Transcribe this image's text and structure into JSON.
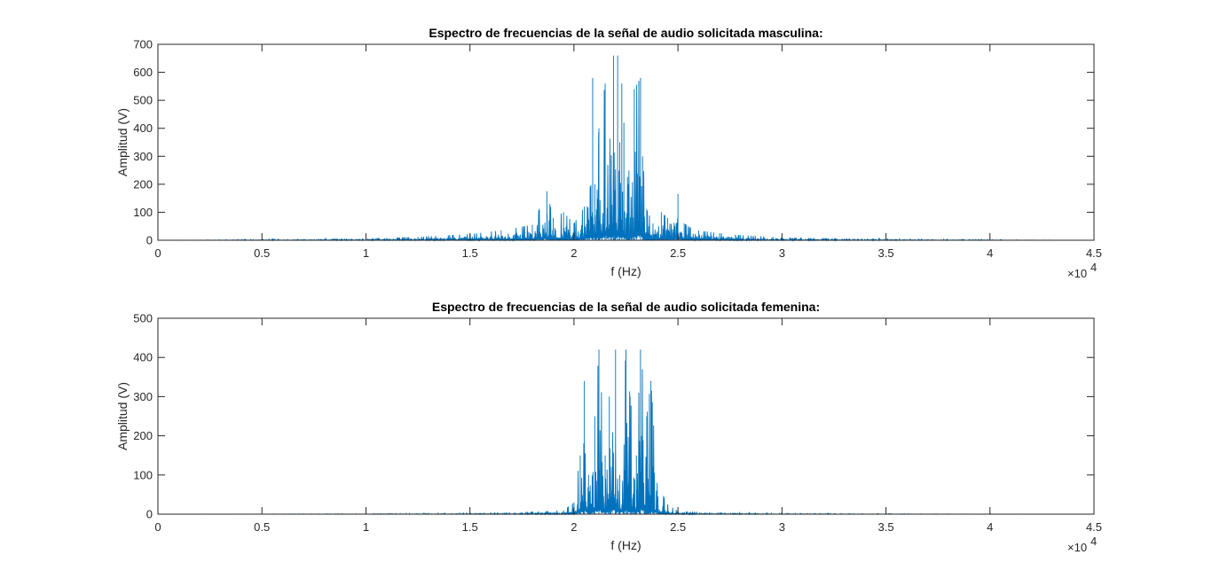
{
  "chart_data": [
    {
      "type": "line",
      "title": "Espectro de frecuencias de la señal de audio solicitada masculina:",
      "xlabel": "f (Hz)",
      "ylabel": "Amplitud (V)",
      "xlim": [
        0,
        45000
      ],
      "ylim": [
        0,
        700
      ],
      "x_tick_labels": [
        "0",
        "0.5",
        "1",
        "1.5",
        "2",
        "2.5",
        "3",
        "3.5",
        "4",
        "4.5"
      ],
      "y_tick_labels": [
        "0",
        "100",
        "200",
        "300",
        "400",
        "500",
        "600",
        "700"
      ],
      "x_exponent_label": "×10",
      "x_exponent_power": "4",
      "grid": false,
      "line_color": "#0072BD",
      "series": [
        {
          "x": [
            0,
            5000,
            10000,
            12500,
            15000,
            16500,
            18000,
            18700,
            19000,
            19500,
            20000,
            20500,
            20900,
            21000,
            21200,
            21500,
            21800,
            21900,
            22000,
            22100,
            22200,
            22300,
            22400,
            22600,
            22900,
            23200,
            23300,
            23500,
            23800,
            24200,
            24500,
            25000,
            25300,
            25600,
            26000,
            27000,
            28000,
            30000,
            33000,
            36000,
            40000,
            44100
          ],
          "y": [
            0,
            3,
            6,
            12,
            22,
            35,
            55,
            175,
            80,
            100,
            60,
            120,
            580,
            200,
            400,
            560,
            300,
            660,
            250,
            660,
            350,
            560,
            420,
            200,
            540,
            580,
            300,
            110,
            60,
            100,
            80,
            165,
            60,
            45,
            35,
            25,
            18,
            10,
            6,
            4,
            2,
            0
          ]
        }
      ]
    },
    {
      "type": "line",
      "title": "Espectro de frecuencias de la señal de audio solicitada femenina:",
      "xlabel": "f (Hz)",
      "ylabel": "Amplitud (V)",
      "xlim": [
        0,
        45000
      ],
      "ylim": [
        0,
        500
      ],
      "x_tick_labels": [
        "0",
        "0.5",
        "1",
        "1.5",
        "2",
        "2.5",
        "3",
        "3.5",
        "4",
        "4.5"
      ],
      "y_tick_labels": [
        "0",
        "100",
        "200",
        "300",
        "400",
        "500"
      ],
      "x_exponent_label": "×10",
      "x_exponent_power": "4",
      "grid": false,
      "line_color": "#0072BD",
      "series": [
        {
          "x": [
            0,
            10000,
            15000,
            18000,
            19500,
            20000,
            20300,
            20500,
            20700,
            21000,
            21200,
            21500,
            21700,
            22000,
            22200,
            22500,
            22700,
            23000,
            23200,
            23500,
            23700,
            24000,
            24500,
            25000,
            27000,
            30000,
            35000,
            44100
          ],
          "y": [
            0,
            1,
            3,
            6,
            10,
            30,
            150,
            340,
            100,
            250,
            420,
            150,
            300,
            420,
            100,
            420,
            300,
            150,
            420,
            250,
            340,
            80,
            25,
            8,
            4,
            2,
            1,
            0
          ]
        }
      ]
    }
  ]
}
